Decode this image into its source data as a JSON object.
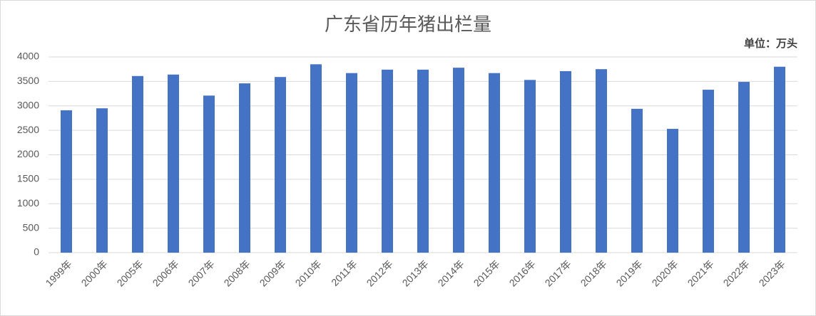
{
  "chart_data": {
    "type": "bar",
    "title": "广东省历年猪出栏量",
    "unit_label": "单位：万头",
    "categories": [
      "1999年",
      "2000年",
      "2005年",
      "2006年",
      "2007年",
      "2008年",
      "2009年",
      "2010年",
      "2011年",
      "2012年",
      "2013年",
      "2014年",
      "2015年",
      "2016年",
      "2017年",
      "2018年",
      "2019年",
      "2020年",
      "2021年",
      "2022年",
      "2023年"
    ],
    "values": [
      2910,
      2950,
      3610,
      3640,
      3210,
      3460,
      3590,
      3850,
      3670,
      3740,
      3740,
      3780,
      3670,
      3530,
      3710,
      3750,
      2940,
      2530,
      3330,
      3490,
      3800
    ],
    "color": "#4472c4",
    "ylim": [
      0,
      4000
    ],
    "yticks": [
      0,
      500,
      1000,
      1500,
      2000,
      2500,
      3000,
      3500,
      4000
    ],
    "grid": true
  }
}
